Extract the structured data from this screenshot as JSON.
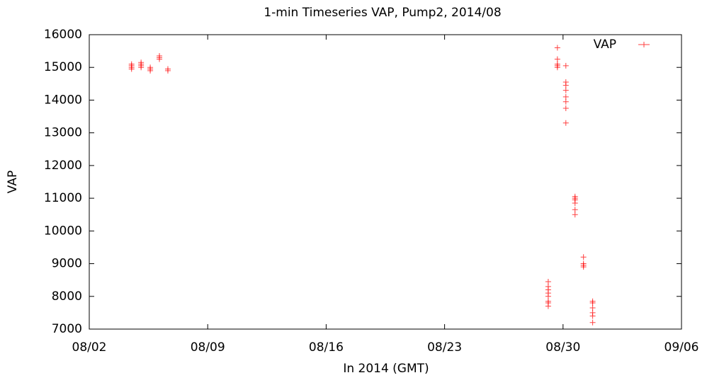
{
  "chart_data": {
    "type": "scatter",
    "title": "1-min Timeseries VAP, Pump2, 2014/08",
    "x_label": "In 2014 (GMT)",
    "y_label": "VAP",
    "xlim": [
      "08/02",
      "09/06"
    ],
    "xticks": [
      "08/02",
      "08/09",
      "08/16",
      "08/23",
      "08/30",
      "09/06"
    ],
    "ylim": [
      7000,
      16000
    ],
    "yticks": [
      7000,
      8000,
      9000,
      10000,
      11000,
      12000,
      13000,
      14000,
      15000,
      16000
    ],
    "legend": "top-right",
    "series": [
      {
        "name": "VAP",
        "color": "#ff0000",
        "marker": "+",
        "x": [
          "08/04 12:00",
          "08/04 12:00",
          "08/04 12:00",
          "08/04 12:00",
          "08/05 01:30",
          "08/05 01:30",
          "08/05 01:30",
          "08/05 01:30",
          "08/05 14:30",
          "08/05 14:30",
          "08/05 14:30",
          "08/06 03:30",
          "08/06 03:30",
          "08/06 03:30",
          "08/06 15:30",
          "08/06 15:30",
          "08/29 03:00",
          "08/29 03:00",
          "08/29 03:00",
          "08/29 03:00",
          "08/29 03:00",
          "08/29 03:00",
          "08/29 03:00",
          "08/29 03:00",
          "08/29 16:00",
          "08/29 16:00",
          "08/29 16:00",
          "08/29 16:00",
          "08/29 16:00",
          "08/30 04:00",
          "08/30 04:00",
          "08/30 04:00",
          "08/30 04:00",
          "08/30 04:00",
          "08/30 04:00",
          "08/30 04:00",
          "08/30 04:00",
          "08/30 17:00",
          "08/30 17:00",
          "08/30 17:00",
          "08/30 17:00",
          "08/30 17:00",
          "08/30 17:00",
          "08/31 05:00",
          "08/31 05:00",
          "08/31 05:00",
          "08/31 05:00",
          "08/31 18:00",
          "08/31 18:00",
          "08/31 18:00",
          "08/31 18:00",
          "08/31 18:00",
          "08/31 18:00"
        ],
        "values": [
          14950,
          15000,
          15050,
          15100,
          15000,
          15050,
          15100,
          15150,
          14900,
          14950,
          15000,
          15250,
          15300,
          15350,
          14900,
          14950,
          7700,
          7800,
          7850,
          8000,
          8100,
          8200,
          8300,
          8450,
          15000,
          15050,
          15100,
          15250,
          15600,
          13300,
          13750,
          13950,
          14100,
          14300,
          14450,
          14550,
          15050,
          10500,
          10650,
          10850,
          10950,
          11000,
          11050,
          8900,
          8950,
          9000,
          9200,
          7200,
          7400,
          7500,
          7650,
          7800,
          7850
        ]
      }
    ]
  }
}
